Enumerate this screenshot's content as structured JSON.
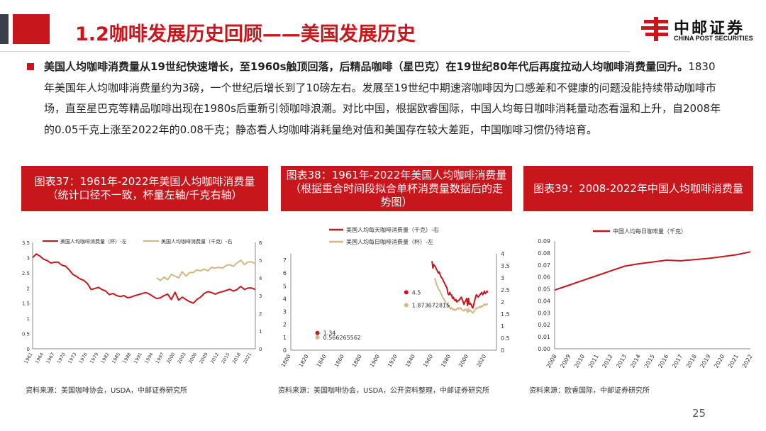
{
  "header": {
    "title": "1.2咖啡发展历史回顾——美国发展历史",
    "logo_text": "中邮证券",
    "logo_sub": "CHINA POST SECURITIES"
  },
  "body": {
    "bold_lead": "美国人均咖啡消费量从19世纪快速增长，至1960s触顶回落，后精品咖啡（星巴克）在19世纪80年代后再度拉动人均咖啡消费量回升。",
    "text": "1830年美国年人均咖啡消费量约为3磅，一个世纪后增长到了10磅左右。发展至19世纪中期速溶咖啡因为口感差和不健康的问题没能持续带动咖啡市场，直至星巴克等精品咖啡出现在1980s后重新引领咖啡浪潮。对比中国，根据欧睿国际，中国人均每日咖啡消耗量动态看温和上升，自2008年的0.05千克上涨至2022年的0.08千克；静态看人均咖啡消耗量绝对值和美国存在较大差距，中国咖啡习惯仍待培育。"
  },
  "captions": {
    "c37": "图表37：1961年-2022年美国人均咖啡消费量（统计口径不一致，杯量左轴/千克右轴）",
    "c38": "图表38：1961年-2022年美国人均咖啡消费量（根据重合时间段拟合单杯消费量数据后的走势图）",
    "c39": "图表39：2008-2022年中国人均咖啡消费量"
  },
  "sources": {
    "s37": "资料来源：美国咖啡协会，USDA，中邮证券研究所",
    "s38": "资料来源：美国咖啡协会，USDA，公开资料整理，中邮证券研究所",
    "s39": "资料来源：欧睿国际，中邮证券研究所"
  },
  "page_number": "25",
  "colors": {
    "red": "#c8161d",
    "tan": "#d8b581",
    "dark": "#3a3f4b"
  },
  "chart_data": [
    {
      "id": "chart37",
      "type": "line",
      "legend": [
        "美国人均咖啡消费量（杯）-左",
        "美国人均咖啡消费量（千克）-右"
      ],
      "x_ticks": [
        "1961",
        "1964",
        "1967",
        "1970",
        "1973",
        "1976",
        "1979",
        "1982",
        "1985",
        "1988",
        "1991",
        "1994",
        "1997",
        "2000",
        "2003",
        "2006",
        "2009",
        "2012",
        "2015",
        "2018",
        "2021"
      ],
      "y_left_ticks": [
        "0",
        "0.5",
        "1",
        "1.5",
        "2",
        "2.5",
        "3",
        "3.5"
      ],
      "y_right_ticks": [
        "0",
        "1",
        "2",
        "3",
        "4",
        "5",
        "6"
      ],
      "ylim_left": [
        0,
        3.5
      ],
      "ylim_right": [
        0,
        6
      ],
      "series": [
        {
          "name": "美国人均咖啡消费量（杯）-左",
          "axis": "left",
          "x": [
            1961,
            1962,
            1963,
            1964,
            1965,
            1966,
            1967,
            1968,
            1969,
            1970,
            1971,
            1972,
            1973,
            1974,
            1975,
            1976,
            1977,
            1978,
            1979,
            1980,
            1981,
            1982,
            1983,
            1984,
            1985,
            1986,
            1987,
            1988,
            1989,
            1990,
            1991,
            1992,
            1993,
            1994,
            1995,
            1996,
            1997,
            1998,
            1999,
            2000,
            2001,
            2002,
            2003,
            2004,
            2005,
            2006,
            2007,
            2008,
            2009,
            2010,
            2011,
            2012,
            2013,
            2014,
            2015,
            2016,
            2017,
            2018,
            2019,
            2020,
            2021,
            2022
          ],
          "values": [
            3.0,
            3.12,
            3.05,
            2.95,
            2.9,
            2.82,
            2.85,
            2.85,
            2.75,
            2.72,
            2.6,
            2.45,
            2.38,
            2.3,
            2.25,
            2.15,
            1.95,
            1.98,
            2.02,
            1.95,
            1.9,
            1.78,
            1.82,
            1.75,
            1.72,
            1.75,
            1.68,
            1.7,
            1.75,
            1.78,
            1.82,
            1.85,
            1.8,
            1.72,
            1.65,
            1.68,
            1.75,
            1.8,
            1.62,
            1.86,
            1.6,
            1.7,
            1.62,
            1.55,
            1.5,
            1.62,
            1.7,
            1.82,
            1.88,
            1.85,
            1.8,
            1.85,
            1.88,
            1.92,
            1.96,
            1.9,
            1.95,
            2.05,
            1.95,
            2.0,
            2.0,
            1.95
          ]
        },
        {
          "name": "美国人均咖啡消费量（千克）-右",
          "axis": "right",
          "x": [
            1995,
            1996,
            1997,
            1998,
            1999,
            2000,
            2001,
            2002,
            2003,
            2004,
            2005,
            2006,
            2007,
            2008,
            2009,
            2010,
            2011,
            2012,
            2013,
            2014,
            2015,
            2016,
            2017,
            2018,
            2019,
            2020,
            2021,
            2022
          ],
          "values": [
            4.0,
            3.85,
            4.05,
            3.9,
            4.2,
            4.1,
            4.0,
            4.35,
            4.1,
            4.3,
            4.3,
            4.45,
            4.4,
            4.5,
            4.4,
            4.6,
            4.55,
            4.6,
            4.55,
            4.7,
            4.75,
            4.65,
            4.85,
            5.0,
            4.75,
            4.9,
            4.9,
            4.8
          ]
        }
      ]
    },
    {
      "id": "chart38",
      "type": "line",
      "legend": [
        "美国人均每天咖啡消费量（千克）-右",
        "美国人均每日咖啡消费量（杯）-左"
      ],
      "x_ticks": [
        "1800",
        "1820",
        "1840",
        "1860",
        "1880",
        "1900",
        "1920",
        "1940",
        "1960",
        "1980",
        "2000",
        "2020"
      ],
      "y_left_ticks": [
        "0",
        "1",
        "2",
        "3",
        "4",
        "5",
        "6",
        "7"
      ],
      "y_right_ticks": [
        "0",
        "0.5",
        "1",
        "1.5",
        "2",
        "2.5",
        "3",
        "3.5",
        "4"
      ],
      "ylim_left": [
        0,
        7.5
      ],
      "ylim_right": [
        0,
        4
      ],
      "annotations": [
        {
          "label": "1.34",
          "x": 1830,
          "y_left": 1.34,
          "series": 0
        },
        {
          "label": "0.566265562",
          "x": 1830,
          "y_left": 1.0,
          "series": 1
        },
        {
          "label": "4.5",
          "x": 1930,
          "y_left": 4.5,
          "series": 0
        },
        {
          "label": "1.873672815",
          "x": 1930,
          "y_left": 3.5,
          "series": 1
        }
      ],
      "series": [
        {
          "name": "美国人均每天咖啡消费量（千克）-右",
          "axis": "right",
          "x": [
            1959,
            1960,
            1961,
            1962,
            1963,
            1964,
            1965,
            1966,
            1967,
            1968,
            1969,
            1970,
            1971,
            1972,
            1973,
            1974,
            1975,
            1976,
            1977,
            1978,
            1979,
            1980,
            1981,
            1982,
            1983,
            1984,
            1985,
            1986,
            1987,
            1988,
            1989,
            1990,
            1991,
            1992,
            1993,
            1994,
            1995,
            1996,
            1997,
            1998,
            1999,
            2000,
            2001,
            2002,
            2003,
            2004,
            2005,
            2006,
            2007,
            2008,
            2009,
            2010,
            2011,
            2012,
            2013,
            2014,
            2015,
            2016,
            2017,
            2018,
            2019,
            2020,
            2021,
            2022
          ],
          "values": [
            3.7,
            3.4,
            3.55,
            3.5,
            3.45,
            3.35,
            3.3,
            3.2,
            3.25,
            3.15,
            3.05,
            3.0,
            2.95,
            2.85,
            2.8,
            2.7,
            2.65,
            2.55,
            2.35,
            2.3,
            2.4,
            2.3,
            2.3,
            2.15,
            2.2,
            2.1,
            2.05,
            2.1,
            2.0,
            2.05,
            2.05,
            2.1,
            2.15,
            2.2,
            2.1,
            2.0,
            1.9,
            2.0,
            2.05,
            2.15,
            1.85,
            2.15,
            1.9,
            1.95,
            1.9,
            1.8,
            1.75,
            1.9,
            2.05,
            2.2,
            2.3,
            2.25,
            2.2,
            2.25,
            2.3,
            2.35,
            2.4,
            2.3,
            2.35,
            2.45,
            2.35,
            2.4,
            2.45,
            2.4
          ]
        },
        {
          "name": "美国人均每日咖啡消费量（杯）-左",
          "axis": "left",
          "x": [
            1962,
            1963,
            1964,
            1965,
            1966,
            1967,
            1968,
            1969,
            1970,
            1971,
            1972,
            1973,
            1974,
            1975,
            1976,
            1977,
            1978,
            1979,
            1980,
            1981,
            1982,
            1983,
            1984,
            1985,
            1986,
            1987,
            1988,
            1989,
            1990,
            1991,
            1992,
            1993,
            1994,
            1995,
            1996,
            1997,
            1998,
            1999,
            2000,
            2001,
            2002,
            2003,
            2004,
            2005,
            2006,
            2007,
            2008,
            2009,
            2010,
            2011,
            2012,
            2013,
            2014,
            2015,
            2016,
            2017,
            2018,
            2019,
            2020,
            2021,
            2022
          ],
          "values": [
            5.6,
            5.4,
            5.1,
            5.0,
            4.8,
            4.7,
            4.6,
            4.4,
            4.3,
            4.1,
            4.0,
            3.9,
            3.7,
            3.6,
            3.5,
            3.4,
            3.5,
            3.3,
            3.2,
            3.3,
            3.2,
            3.15,
            3.2,
            3.1,
            3.15,
            3.2,
            3.3,
            3.2,
            3.25,
            3.3,
            3.2,
            3.15,
            3.1,
            3.05,
            3.15,
            3.2,
            3.1,
            2.95,
            3.25,
            3.0,
            3.1,
            3.05,
            2.95,
            2.9,
            3.0,
            3.1,
            3.2,
            3.3,
            3.25,
            3.3,
            3.35,
            3.4,
            3.35,
            3.45,
            3.4,
            3.5,
            3.6,
            3.5,
            3.55,
            3.6,
            3.55
          ]
        }
      ]
    },
    {
      "id": "chart39",
      "type": "line",
      "legend": [
        "中国人均每日咖啡量（千克）"
      ],
      "x_ticks": [
        "2008",
        "2009",
        "2010",
        "2011",
        "2012",
        "2013",
        "2014",
        "2015",
        "2016",
        "2017",
        "2018",
        "2019",
        "2020",
        "2021",
        "2022"
      ],
      "y_ticks": [
        "0.00",
        "0.01",
        "0.02",
        "0.03",
        "0.04",
        "0.05",
        "0.06",
        "0.07",
        "0.08",
        "0.09"
      ],
      "ylim": [
        0,
        0.09
      ],
      "series": [
        {
          "name": "中国人均每日咖啡量（千克）",
          "x": [
            2008,
            2009,
            2010,
            2011,
            2012,
            2013,
            2014,
            2015,
            2016,
            2017,
            2018,
            2019,
            2020,
            2021,
            2022
          ],
          "values": [
            0.049,
            0.053,
            0.057,
            0.061,
            0.065,
            0.069,
            0.071,
            0.0725,
            0.074,
            0.0735,
            0.0745,
            0.0755,
            0.077,
            0.0785,
            0.081
          ]
        }
      ]
    }
  ]
}
